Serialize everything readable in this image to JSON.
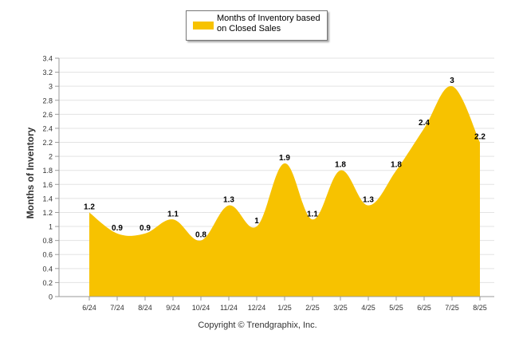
{
  "chart_data": {
    "type": "area",
    "ylabel": "Months of Inventory",
    "xlabel": "",
    "categories": [
      "6/24",
      "7/24",
      "8/24",
      "9/24",
      "10/24",
      "11/24",
      "12/24",
      "1/25",
      "2/25",
      "3/25",
      "4/25",
      "5/25",
      "6/25",
      "7/25",
      "8/25"
    ],
    "series": [
      {
        "name": "Months of Inventory based on Closed Sales",
        "values": [
          1.2,
          0.9,
          0.9,
          1.1,
          0.8,
          1.3,
          1.0,
          1.9,
          1.1,
          1.8,
          1.3,
          1.8,
          2.4,
          3.0,
          2.2
        ],
        "data_labels": [
          "1.2",
          "0.9",
          "0.9",
          "1.1",
          "0.8",
          "1.3",
          "1",
          "1.9",
          "1.1",
          "1.8",
          "1.3",
          "1.8",
          "2.4",
          "3",
          "2.2"
        ]
      }
    ],
    "ylim": [
      0,
      3.4
    ],
    "yticks": [
      "0",
      "0.2",
      "0.4",
      "0.6",
      "0.8",
      "1",
      "1.2",
      "1.4",
      "1.6",
      "1.8",
      "2",
      "2.2",
      "2.4",
      "2.6",
      "2.8",
      "3",
      "3.2",
      "3.4"
    ],
    "grid": true,
    "legend": "top-center",
    "colors": {
      "area": "#F7C200",
      "grid": "#e3e3e3",
      "axis": "#9a9a9a"
    }
  },
  "legend": {
    "label": "Months of Inventory based on Closed Sales"
  },
  "footer": {
    "copyright": "Copyright © Trendgraphix, Inc."
  }
}
